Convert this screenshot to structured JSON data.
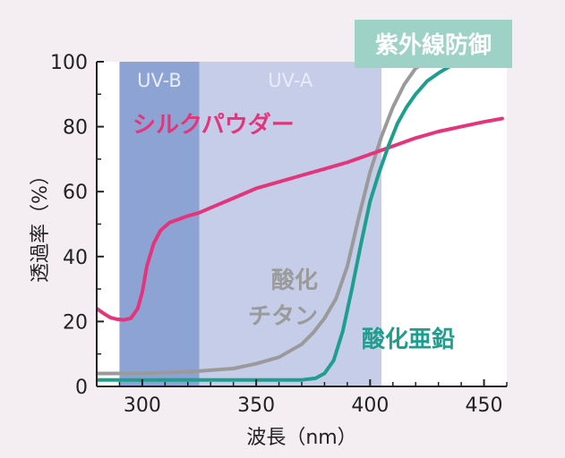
{
  "chart_data": {
    "type": "line",
    "xlabel": "波長（nm）",
    "ylabel": "透過率（%）",
    "xlim": [
      280,
      460
    ],
    "ylim": [
      0,
      100
    ],
    "x_ticks": [
      300,
      350,
      400,
      450
    ],
    "y_ticks": [
      0,
      20,
      40,
      60,
      80,
      100
    ],
    "bands": [
      {
        "label": "UV-B",
        "x": [
          290,
          325
        ],
        "color": "#8da3d3"
      },
      {
        "label": "UV-A",
        "x": [
          325,
          405
        ],
        "color": "#c5cde8"
      }
    ],
    "banner": {
      "label": "紫外線防御",
      "color": "#9ed2c6"
    },
    "series": [
      {
        "name": "シルクパウダー",
        "color": "#e4347c",
        "label_lines": [
          "シルクパウダー"
        ],
        "x": [
          280,
          283,
          286,
          289,
          292,
          295,
          298,
          300,
          302,
          305,
          308,
          312,
          316,
          320,
          325,
          330,
          340,
          350,
          360,
          370,
          380,
          390,
          400,
          410,
          420,
          430,
          440,
          450,
          458
        ],
        "y": [
          24,
          22.5,
          21.2,
          20.7,
          20.5,
          21,
          24,
          29,
          37,
          44,
          48,
          50.5,
          51.5,
          52.5,
          53.5,
          55,
          58,
          61,
          63,
          65,
          67,
          69,
          71.5,
          74,
          76.5,
          78.5,
          80,
          81.5,
          82.5
        ]
      },
      {
        "name": "酸化チタン",
        "color": "#9a9a9a",
        "label_lines": [
          "酸化",
          "チタン"
        ],
        "x": [
          280,
          300,
          320,
          340,
          350,
          360,
          370,
          375,
          380,
          385,
          390,
          395,
          400,
          405,
          410,
          415,
          420,
          425
        ],
        "y": [
          4,
          4,
          4.5,
          5.5,
          7,
          9,
          13,
          16.5,
          21,
          27,
          37,
          52,
          66,
          77,
          86,
          93,
          98,
          100
        ]
      },
      {
        "name": "酸化亜鉛",
        "color": "#1e9e8c",
        "label_lines": [
          "酸化亜鉛"
        ],
        "x": [
          280,
          300,
          350,
          370,
          376,
          380,
          384,
          388,
          392,
          396,
          400,
          404,
          408,
          412,
          416,
          420,
          425,
          430,
          436,
          440
        ],
        "y": [
          2,
          2,
          2,
          2,
          2.5,
          4,
          8,
          17,
          30,
          44,
          57,
          66,
          74,
          81,
          86,
          90,
          94,
          96.5,
          99,
          100
        ]
      }
    ]
  }
}
